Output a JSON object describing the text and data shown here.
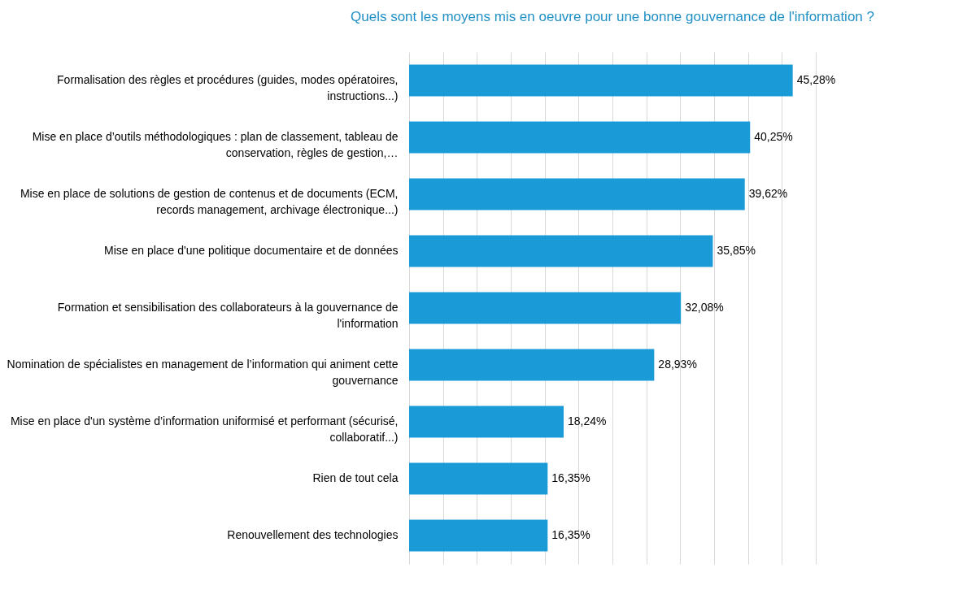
{
  "chart_data": {
    "type": "bar",
    "orientation": "horizontal",
    "title": "Quels sont les moyens mis en oeuvre pour une bonne gouvernance de l'information ?",
    "categories": [
      "Formalisation des règles et procédures (guides, modes opératoires, instructions...)",
      "Mise en place d’outils méthodologiques : plan de classement, tableau de conservation, règles de gestion,…",
      "Mise en place de solutions de gestion de contenus et de documents (ECM, records management, archivage électronique...)",
      "Mise en place d'une politique documentaire et de données",
      "Formation et sensibilisation des collaborateurs à la gouvernance de l'information",
      "Nomination de spécialistes en management de l’information qui animent cette gouvernance",
      "Mise en place d'un système d’information uniformisé et performant (sécurisé, collaboratif...)",
      "Rien de tout cela",
      "Renouvellement des technologies"
    ],
    "values": [
      45.28,
      40.25,
      39.62,
      35.85,
      32.08,
      28.93,
      18.24,
      16.35,
      16.35
    ],
    "value_labels": [
      "45,28%",
      "40,25%",
      "39,62%",
      "35,85%",
      "32,08%",
      "28,93%",
      "18,24%",
      "16,35%",
      "16,35%"
    ],
    "color": "#1a9ad6",
    "xlim": [
      0,
      48
    ],
    "xticks": [
      0,
      4,
      8,
      12,
      16,
      20,
      24,
      28,
      32,
      36,
      40,
      44,
      48
    ],
    "grid": "x",
    "tick_labels": "y"
  }
}
